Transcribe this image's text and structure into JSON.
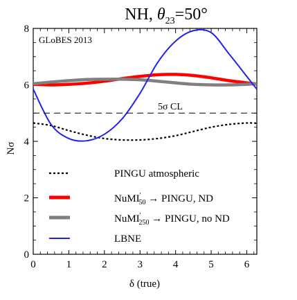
{
  "chart_data": {
    "type": "line",
    "title": "NH, θ23=50°",
    "title_parts": {
      "lead": "NH, ",
      "symbol": "θ",
      "subscript": "23",
      "tail": "=50°"
    },
    "xlabel": "δ (true)",
    "ylabel": "Nσ",
    "xlim": [
      0,
      6.2832
    ],
    "ylim": [
      0,
      8
    ],
    "xticks": [
      0,
      1,
      2,
      3,
      4,
      5,
      6
    ],
    "yticks": [
      0,
      2,
      4,
      6,
      8
    ],
    "xtick_labels": [
      "0",
      "1",
      "2",
      "3",
      "4",
      "5",
      "6"
    ],
    "ytick_labels": [
      "0",
      "2",
      "4",
      "6",
      "8"
    ],
    "grid": false,
    "legend_position": "lower-center",
    "watermark": "GLoBES 2013",
    "reference_line": {
      "y": 5,
      "label": "5σ CL",
      "style": "dashed"
    },
    "series": [
      {
        "name": "PINGU atmospheric",
        "style": "dotted",
        "color": "#000000",
        "x": [
          0,
          0.5,
          1,
          1.5,
          2,
          2.5,
          3,
          3.5,
          4,
          4.5,
          5,
          5.5,
          6,
          6.28
        ],
        "y": [
          4.65,
          4.56,
          4.38,
          4.22,
          4.1,
          4.05,
          4.05,
          4.1,
          4.2,
          4.35,
          4.5,
          4.6,
          4.65,
          4.64
        ]
      },
      {
        "name": "NuMI'50 → PINGU, ND",
        "legend_parts": {
          "pre": "NuMI",
          "sup": "'",
          "sub": "50",
          "post": " → PINGU, ND"
        },
        "style": "solid-thick",
        "color": "#ff0000",
        "x": [
          0,
          0.5,
          1,
          1.5,
          2,
          2.5,
          3,
          3.5,
          4,
          4.5,
          5,
          5.5,
          6,
          6.28
        ],
        "y": [
          6.02,
          6.0,
          6.02,
          6.06,
          6.13,
          6.22,
          6.3,
          6.36,
          6.37,
          6.33,
          6.25,
          6.15,
          6.07,
          6.03
        ]
      },
      {
        "name": "NuMI'250 → PINGU, no ND",
        "legend_parts": {
          "pre": "NuMI",
          "sup": "'",
          "sub": "250",
          "post": " → PINGU, no ND"
        },
        "style": "solid-thick",
        "color": "#808080",
        "x": [
          0,
          0.5,
          1,
          1.5,
          2,
          2.5,
          3,
          3.5,
          4,
          4.5,
          5,
          5.5,
          6,
          6.28
        ],
        "y": [
          6.04,
          6.1,
          6.15,
          6.19,
          6.2,
          6.2,
          6.18,
          6.13,
          6.07,
          6.02,
          6.0,
          6.0,
          6.02,
          6.04
        ]
      },
      {
        "name": "LBNE",
        "style": "solid",
        "color": "#2222ee",
        "x": [
          0,
          0.5,
          1,
          1.5,
          2,
          2.5,
          3,
          3.5,
          4,
          4.5,
          5,
          5.5,
          6,
          6.28
        ],
        "y": [
          5.85,
          4.6,
          4.1,
          4.02,
          4.25,
          4.8,
          5.7,
          6.8,
          7.55,
          7.92,
          7.85,
          7.1,
          6.3,
          5.85
        ]
      }
    ]
  }
}
